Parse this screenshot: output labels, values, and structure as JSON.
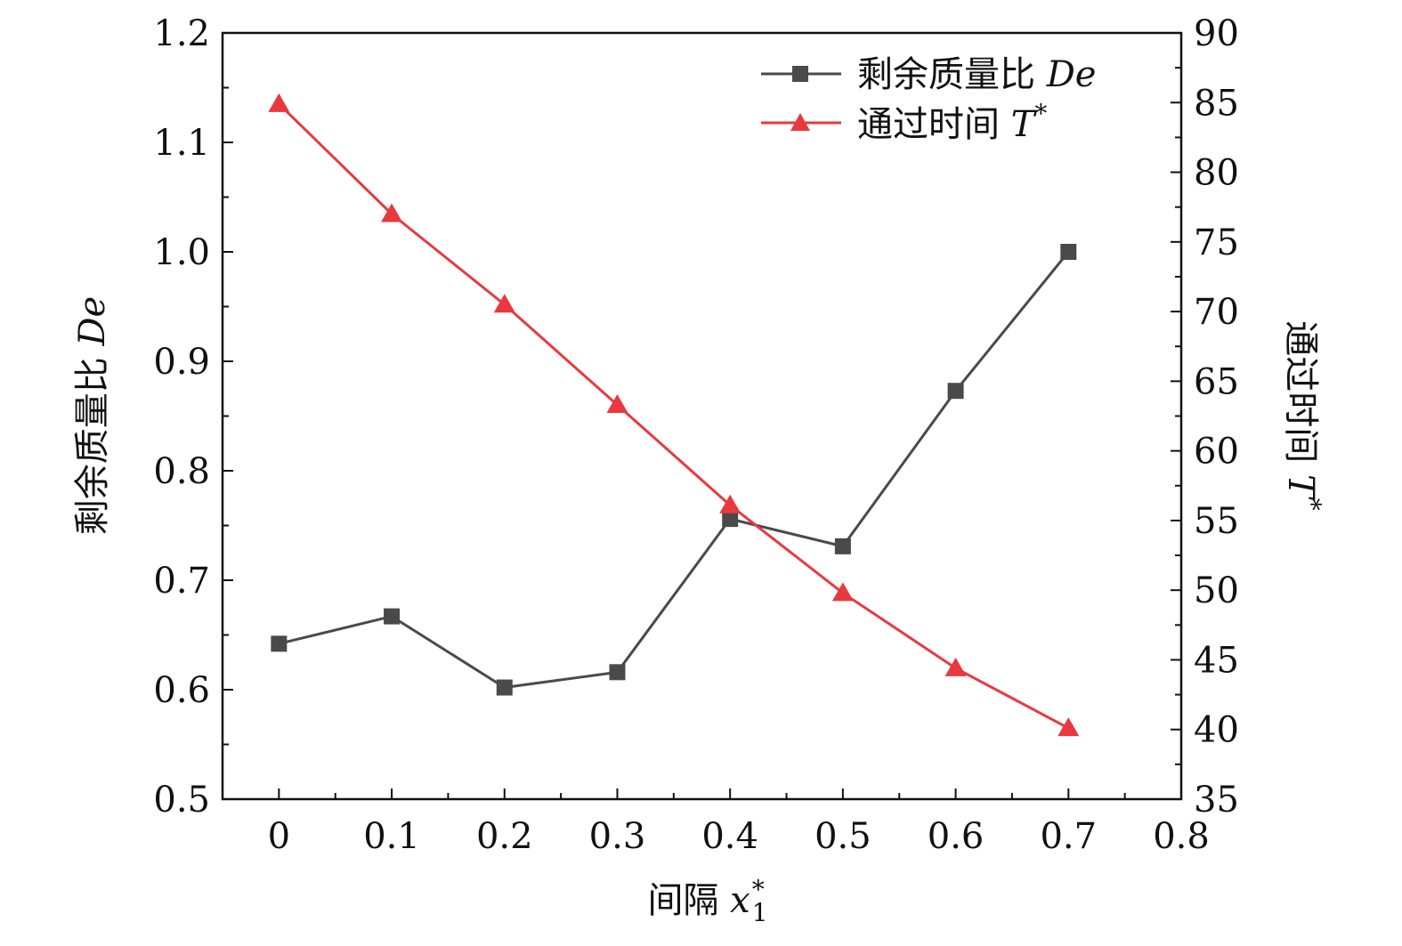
{
  "chart_data": {
    "type": "line",
    "x": [
      0,
      0.1,
      0.2,
      0.3,
      0.4,
      0.5,
      0.6,
      0.7
    ],
    "x_ticks": [
      "0",
      "0.1",
      "0.2",
      "0.3",
      "0.4",
      "0.5",
      "0.6",
      "0.7",
      "0.8"
    ],
    "xlim": [
      -0.05,
      0.8
    ],
    "xlabel": {
      "text": "间隔 ",
      "var": "x",
      "sup": "*",
      "sub": "1"
    },
    "y_left": {
      "label": {
        "text": "剩余质量比 ",
        "var": "De"
      },
      "lim": [
        0.5,
        1.2
      ],
      "ticks": [
        "0.5",
        "0.6",
        "0.7",
        "0.8",
        "0.9",
        "1.0",
        "1.1",
        "1.2"
      ]
    },
    "y_right": {
      "label": {
        "text": "通过时间 ",
        "var": "T",
        "sup": "*"
      },
      "lim": [
        35,
        90
      ],
      "ticks": [
        "35",
        "40",
        "45",
        "50",
        "55",
        "60",
        "65",
        "70",
        "75",
        "80",
        "85",
        "90"
      ]
    },
    "series": [
      {
        "name": "剩余质量比 ",
        "name_var": "De",
        "axis": "left",
        "marker": "square",
        "color": "#4a4a4a",
        "values": [
          0.642,
          0.667,
          0.602,
          0.616,
          0.756,
          0.731,
          0.873,
          1.0
        ]
      },
      {
        "name": "通过时间 ",
        "name_var": "T",
        "name_sup": "*",
        "axis": "right",
        "marker": "triangle",
        "color": "#e8393f",
        "values": [
          84.9,
          77.0,
          70.5,
          63.3,
          56.1,
          49.8,
          44.4,
          40.1
        ]
      }
    ],
    "legend_position": "top-right"
  }
}
